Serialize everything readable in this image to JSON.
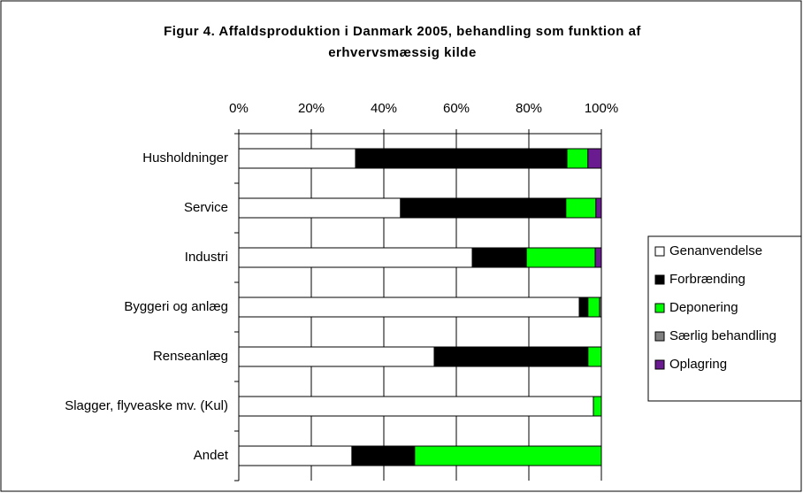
{
  "chart_data": {
    "type": "stacked_bar_horizontal",
    "title": [
      "Figur 4. Affaldsproduktion i Danmark 2005, behandling som funktion af",
      "erhvervsmæssig kilde"
    ],
    "categories": [
      "Husholdninger",
      "Service",
      "Industri",
      "Byggeri og anlæg",
      "Renseanlæg",
      "Slagger, flyveaske mv. (Kul)",
      "Andet"
    ],
    "series": [
      {
        "name": "Genanvendelse",
        "color": "#ffffff",
        "values": [
          32.2,
          44.6,
          64.4,
          93.9,
          53.9,
          97.8,
          31.2
        ]
      },
      {
        "name": "Forbrænding",
        "color": "#000000",
        "values": [
          58.3,
          45.6,
          14.9,
          2.4,
          42.4,
          0,
          17.3
        ]
      },
      {
        "name": "Deponering",
        "color": "#00ff00",
        "values": [
          5.8,
          8.3,
          19.0,
          3.2,
          3.7,
          2.2,
          51.5
        ]
      },
      {
        "name": "Særlig behandling",
        "color": "#808080",
        "values": [
          0,
          0,
          0,
          0.5,
          0,
          0,
          0
        ]
      },
      {
        "name": "Oplagring",
        "color": "#6a1b8f",
        "values": [
          3.7,
          1.5,
          1.7,
          0,
          0,
          0,
          0
        ]
      }
    ],
    "xlim": [
      0,
      100
    ],
    "xticks": [
      {
        "value": 0,
        "label": "0%"
      },
      {
        "value": 20,
        "label": "20%"
      },
      {
        "value": 40,
        "label": "40%"
      },
      {
        "value": 60,
        "label": "60%"
      },
      {
        "value": 80,
        "label": "80%"
      },
      {
        "value": 100,
        "label": "100%"
      }
    ],
    "grid": true,
    "legend": "right"
  }
}
